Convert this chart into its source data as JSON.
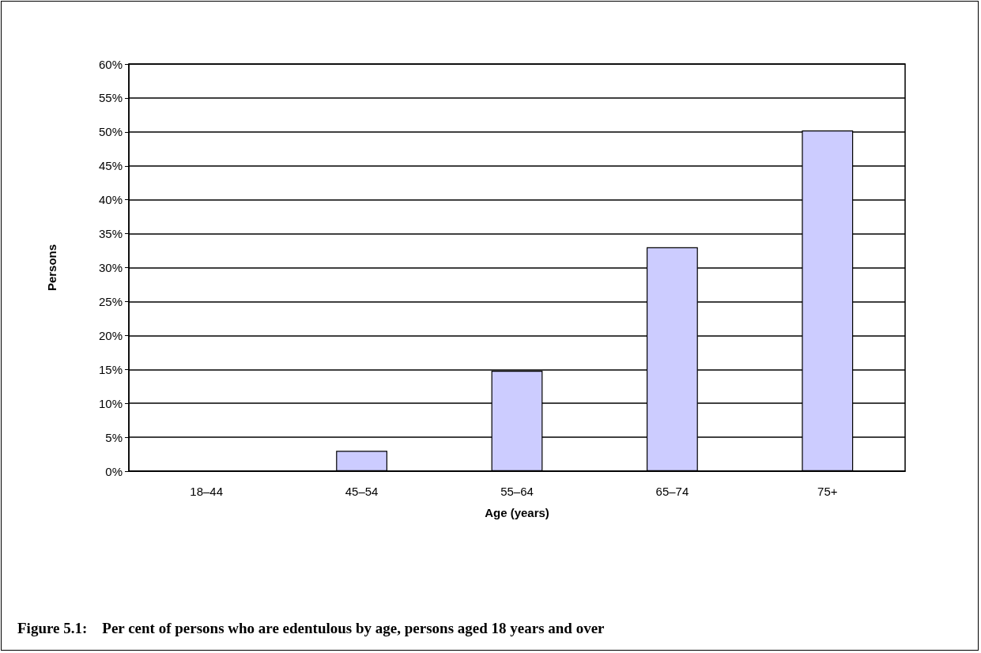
{
  "chart_data": {
    "type": "bar",
    "xlabel": "Age (years)",
    "ylabel": "Persons",
    "categories": [
      "18–44",
      "45–54",
      "55–64",
      "65–74",
      "75+"
    ],
    "values": [
      0,
      3.0,
      14.8,
      33.0,
      50.2
    ],
    "color": "#ccccff",
    "ylim": [
      0,
      60
    ],
    "yticks": [
      {
        "value": 0,
        "label": "0%"
      },
      {
        "value": 5,
        "label": "5%"
      },
      {
        "value": 10,
        "label": "10%"
      },
      {
        "value": 15,
        "label": "15%"
      },
      {
        "value": 20,
        "label": "20%"
      },
      {
        "value": 25,
        "label": "25%"
      },
      {
        "value": 30,
        "label": "30%"
      },
      {
        "value": 35,
        "label": "35%"
      },
      {
        "value": 40,
        "label": "40%"
      },
      {
        "value": 45,
        "label": "45%"
      },
      {
        "value": 50,
        "label": "50%"
      },
      {
        "value": 55,
        "label": "55%"
      },
      {
        "value": 60,
        "label": "60%"
      }
    ],
    "grid": "y",
    "annotations": [
      "Figure 5.1:    Per cent of persons who are edentulous by age, persons aged 18 years and over"
    ]
  }
}
